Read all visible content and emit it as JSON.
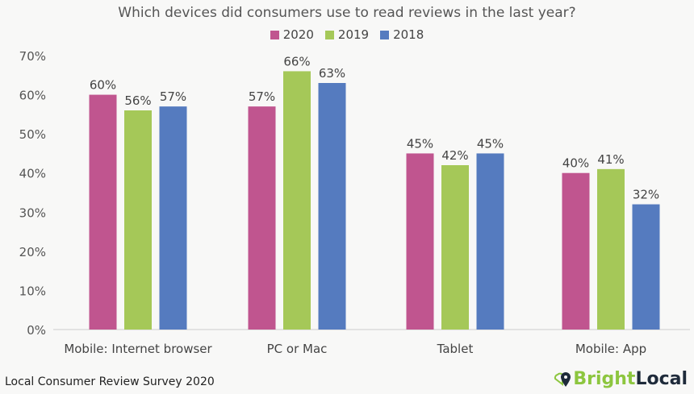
{
  "chart_data": {
    "type": "bar",
    "title": "Which devices did consumers use to read reviews in the last year?",
    "categories": [
      "Mobile: Internet browser",
      "PC or Mac",
      "Tablet",
      "Mobile: App"
    ],
    "series": [
      {
        "name": "2020",
        "color": "#c0558f",
        "values": [
          60,
          57,
          45,
          40
        ]
      },
      {
        "name": "2019",
        "color": "#a5c858",
        "values": [
          56,
          66,
          42,
          41
        ]
      },
      {
        "name": "2018",
        "color": "#557bbf",
        "values": [
          57,
          63,
          45,
          32
        ]
      }
    ],
    "ylim": [
      0,
      70
    ],
    "yticks": [
      "0%",
      "10%",
      "20%",
      "30%",
      "40%",
      "50%",
      "60%",
      "70%"
    ],
    "grid": false,
    "legend": "top-center",
    "value_suffix": "%"
  },
  "footer": "Local Consumer Review Survey 2020",
  "logo": {
    "part1": "Bright",
    "part2": "Local",
    "color1": "#8dc63f",
    "color2": "#1e2a3a"
  }
}
